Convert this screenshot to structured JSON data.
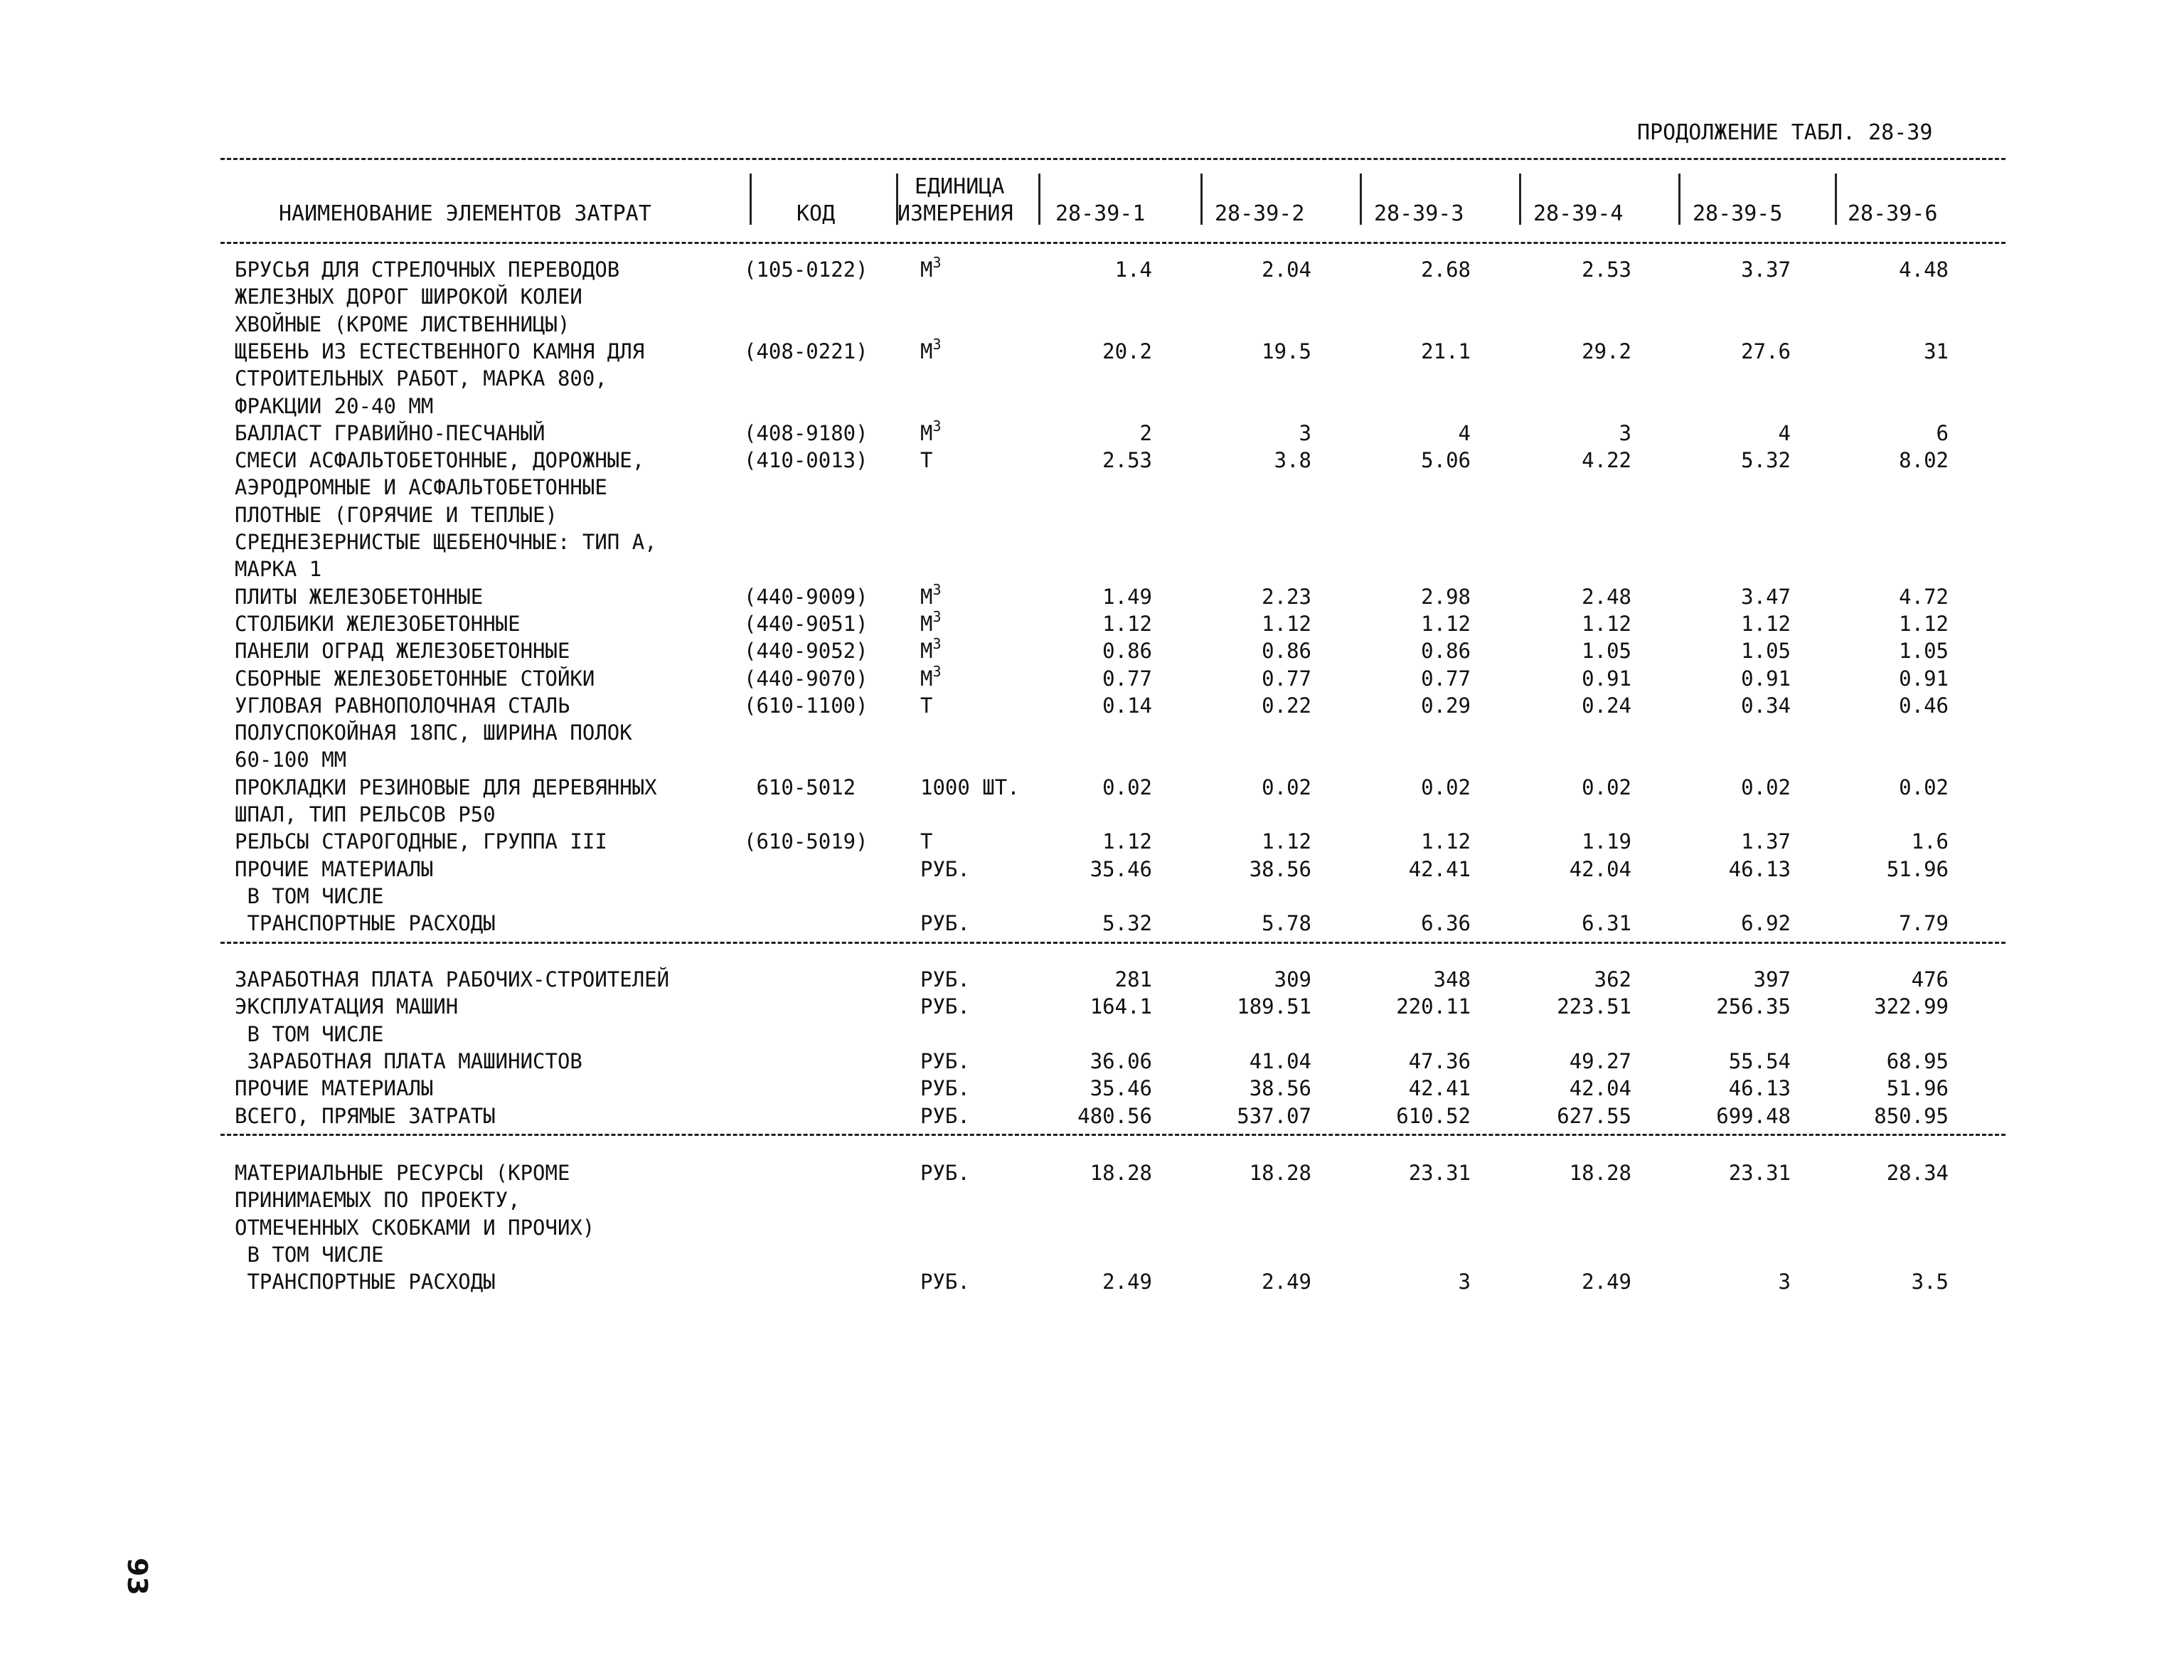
{
  "caption": "ПРОДОЛЖЕНИЕ ТАБЛ. 28-39",
  "page_number": "93",
  "headers": {
    "name": "НАИМЕНОВАНИЕ ЭЛЕМЕНТОВ ЗАТРАТ",
    "code": "КОД",
    "unit_line1": "ЕДИНИЦА",
    "unit_line2": "ИЗМЕРЕНИЯ",
    "cols": [
      "28-39-1",
      "28-39-2",
      "28-39-3",
      "28-39-4",
      "28-39-5",
      "28-39-6"
    ]
  },
  "rows": [
    {
      "name": [
        "БРУСЬЯ ДЛЯ СТРЕЛОЧНЫХ ПЕРЕВОДОВ",
        "ЖЕЛЕЗНЫХ ДОРОГ ШИРОКОЙ КОЛЕИ",
        "ХВОЙНЫЕ (КРОМЕ ЛИСТВЕННИЦЫ)"
      ],
      "code": "(105-0122)",
      "unit": "М",
      "unit_sup": "3",
      "values": [
        "1.4",
        "2.04",
        "2.68",
        "2.53",
        "3.37",
        "4.48"
      ]
    },
    {
      "name": [
        "ЩЕБЕНЬ ИЗ ЕСТЕСТВЕННОГО КАМНЯ ДЛЯ",
        "СТРОИТЕЛЬНЫХ РАБОТ, МАРКА 800,",
        "ФРАКЦИИ 20-40 ММ"
      ],
      "code": "(408-0221)",
      "unit": "М",
      "unit_sup": "3",
      "values": [
        "20.2",
        "19.5",
        "21.1",
        "29.2",
        "27.6",
        "31"
      ]
    },
    {
      "name": [
        "БАЛЛАСТ ГРАВИЙНО-ПЕСЧАНЫЙ"
      ],
      "code": "(408-9180)",
      "unit": "М",
      "unit_sup": "3",
      "values": [
        "2",
        "3",
        "4",
        "3",
        "4",
        "6"
      ]
    },
    {
      "name": [
        "СМЕСИ АСФАЛЬТОБЕТОННЫЕ, ДОРОЖНЫЕ,",
        "АЭРОДРОМНЫЕ И АСФАЛЬТОБЕТОННЫЕ",
        "ПЛОТНЫЕ (ГОРЯЧИЕ И ТЕПЛЫЕ)",
        "СРЕДНЕЗЕРНИСТЫЕ ЩЕБЕНОЧНЫЕ: ТИП А,",
        "МАРКА 1"
      ],
      "code": "(410-0013)",
      "unit": "Т",
      "unit_sup": "",
      "values": [
        "2.53",
        "3.8",
        "5.06",
        "4.22",
        "5.32",
        "8.02"
      ]
    },
    {
      "name": [
        "ПЛИТЫ ЖЕЛЕЗОБЕТОННЫЕ"
      ],
      "code": "(440-9009)",
      "unit": "М",
      "unit_sup": "3",
      "values": [
        "1.49",
        "2.23",
        "2.98",
        "2.48",
        "3.47",
        "4.72"
      ]
    },
    {
      "name": [
        "СТОЛБИКИ ЖЕЛЕЗОБЕТОННЫЕ"
      ],
      "code": "(440-9051)",
      "unit": "М",
      "unit_sup": "3",
      "values": [
        "1.12",
        "1.12",
        "1.12",
        "1.12",
        "1.12",
        "1.12"
      ]
    },
    {
      "name": [
        "ПАНЕЛИ ОГРАД ЖЕЛЕЗОБЕТОННЫЕ"
      ],
      "code": "(440-9052)",
      "unit": "М",
      "unit_sup": "3",
      "values": [
        "0.86",
        "0.86",
        "0.86",
        "1.05",
        "1.05",
        "1.05"
      ]
    },
    {
      "name": [
        "СБОРНЫЕ ЖЕЛЕЗОБЕТОННЫЕ СТОЙКИ"
      ],
      "code": "(440-9070)",
      "unit": "М",
      "unit_sup": "3",
      "values": [
        "0.77",
        "0.77",
        "0.77",
        "0.91",
        "0.91",
        "0.91"
      ]
    },
    {
      "name": [
        "УГЛОВАЯ РАВНОПОЛОЧНАЯ СТАЛЬ",
        "ПОЛУСПОКОЙНАЯ 18ПС, ШИРИНА ПОЛОК",
        "60-100 ММ"
      ],
      "code": "(610-1100)",
      "unit": "Т",
      "unit_sup": "",
      "values": [
        "0.14",
        "0.22",
        "0.29",
        "0.24",
        "0.34",
        "0.46"
      ]
    },
    {
      "name": [
        "ПРОКЛАДКИ РЕЗИНОВЫЕ ДЛЯ ДЕРЕВЯННЫХ",
        "ШПАЛ, ТИП РЕЛЬСОВ Р50"
      ],
      "code": " 610-5012",
      "unit": "1000 ШТ.",
      "unit_sup": "",
      "values": [
        "0.02",
        "0.02",
        "0.02",
        "0.02",
        "0.02",
        "0.02"
      ]
    },
    {
      "name": [
        "РЕЛЬСЫ СТАРОГОДНЫЕ, ГРУППА III"
      ],
      "code": "(610-5019)",
      "unit": "Т",
      "unit_sup": "",
      "values": [
        "1.12",
        "1.12",
        "1.12",
        "1.19",
        "1.37",
        "1.6"
      ]
    },
    {
      "name": [
        "ПРОЧИЕ МАТЕРИАЛЫ",
        " В ТОМ ЧИСЛЕ"
      ],
      "code": "",
      "unit": "РУБ.",
      "unit_sup": "",
      "values": [
        "35.46",
        "38.56",
        "42.41",
        "42.04",
        "46.13",
        "51.96"
      ]
    },
    {
      "name": [
        " ТРАНСПОРТНЫЕ РАСХОДЫ"
      ],
      "code": "",
      "unit": "РУБ.",
      "unit_sup": "",
      "values": [
        "5.32",
        "5.78",
        "6.36",
        "6.31",
        "6.92",
        "7.79"
      ]
    }
  ],
  "rows2": [
    {
      "name": [
        "ЗАРАБОТНАЯ ПЛАТА РАБОЧИХ-СТРОИТЕЛЕЙ"
      ],
      "unit": "РУБ.",
      "values": [
        "281",
        "309",
        "348",
        "362",
        "397",
        "476"
      ]
    },
    {
      "name": [
        "ЭКСПЛУАТАЦИЯ МАШИН",
        " В ТОМ ЧИСЛЕ"
      ],
      "unit": "РУБ.",
      "values": [
        "164.1",
        "189.51",
        "220.11",
        "223.51",
        "256.35",
        "322.99"
      ]
    },
    {
      "name": [
        " ЗАРАБОТНАЯ ПЛАТА МАШИНИСТОВ"
      ],
      "unit": "РУБ.",
      "values": [
        "36.06",
        "41.04",
        "47.36",
        "49.27",
        "55.54",
        "68.95"
      ]
    },
    {
      "name": [
        "ПРОЧИЕ МАТЕРИАЛЫ"
      ],
      "unit": "РУБ.",
      "values": [
        "35.46",
        "38.56",
        "42.41",
        "42.04",
        "46.13",
        "51.96"
      ]
    },
    {
      "name": [
        "ВСЕГО, ПРЯМЫЕ ЗАТРАТЫ"
      ],
      "unit": "РУБ.",
      "values": [
        "480.56",
        "537.07",
        "610.52",
        "627.55",
        "699.48",
        "850.95"
      ]
    }
  ],
  "rows3": [
    {
      "name": [
        "МАТЕРИАЛЬНЫЕ РЕСУРСЫ (КРОМЕ",
        "ПРИНИМАЕМЫХ ПО ПРОЕКТУ,",
        "ОТМЕЧЕННЫХ СКОБКАМИ И ПРОЧИХ)",
        " В ТОМ ЧИСЛЕ"
      ],
      "unit": "РУБ.",
      "values": [
        "18.28",
        "18.28",
        "23.31",
        "18.28",
        "23.31",
        "28.34"
      ]
    },
    {
      "name": [
        " ТРАНСПОРТНЫЕ РАСХОДЫ"
      ],
      "unit": "РУБ.",
      "values": [
        "2.49",
        "2.49",
        "3",
        "2.49",
        "3",
        "3.5"
      ]
    }
  ]
}
